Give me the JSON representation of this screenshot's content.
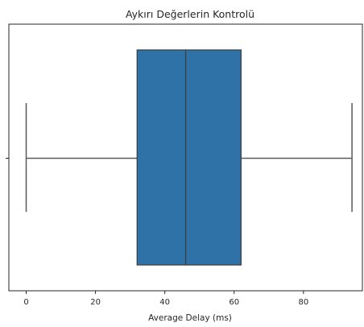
{
  "chart_data": {
    "type": "boxplot",
    "title": "Aykırı Değerlerin Kontrolü",
    "xlabel": "Average Delay (ms)",
    "ylabel": "",
    "xlim": [
      -5,
      97
    ],
    "x_ticks": [
      0,
      20,
      40,
      60,
      80
    ],
    "y_ticks": [
      ""
    ],
    "grid": false,
    "legend": "none",
    "series": [
      {
        "min": 0,
        "q1": 32,
        "median": 46,
        "q3": 62,
        "max": 94,
        "outliers": []
      }
    ],
    "colors": {
      "box_fill": "#2e72a8",
      "line": "#3c3c3c",
      "whisker": "#5a5a5a",
      "axis": "#262626"
    }
  }
}
